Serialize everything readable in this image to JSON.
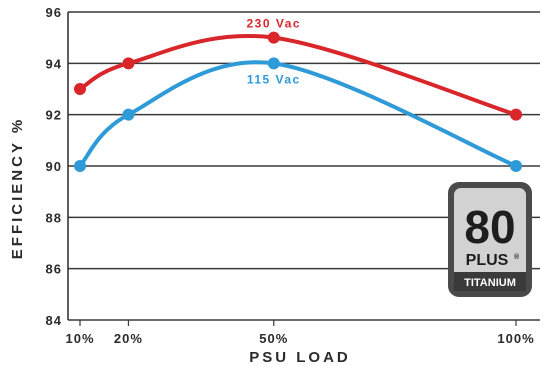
{
  "chart_data": {
    "type": "line",
    "ylabel": "EFFICIENCY %",
    "xlabel": "PSU LOAD",
    "ylim": [
      84,
      96
    ],
    "yticks": [
      "84",
      "86",
      "88",
      "90",
      "92",
      "94",
      "96"
    ],
    "x": [
      10,
      20,
      50,
      100
    ],
    "xticks": [
      "10%",
      "20%",
      "50%",
      "100%"
    ],
    "grid": true,
    "series": [
      {
        "name": "230 Vac",
        "color": "#d9262b",
        "values": [
          93,
          94,
          95,
          92
        ]
      },
      {
        "name": "115 Vac",
        "color": "#2e9ad8",
        "values": [
          90,
          92,
          94,
          90
        ]
      }
    ]
  },
  "badge": {
    "number": "80",
    "brand": "PLUS",
    "tier": "TITANIUM",
    "trademark": "®"
  }
}
